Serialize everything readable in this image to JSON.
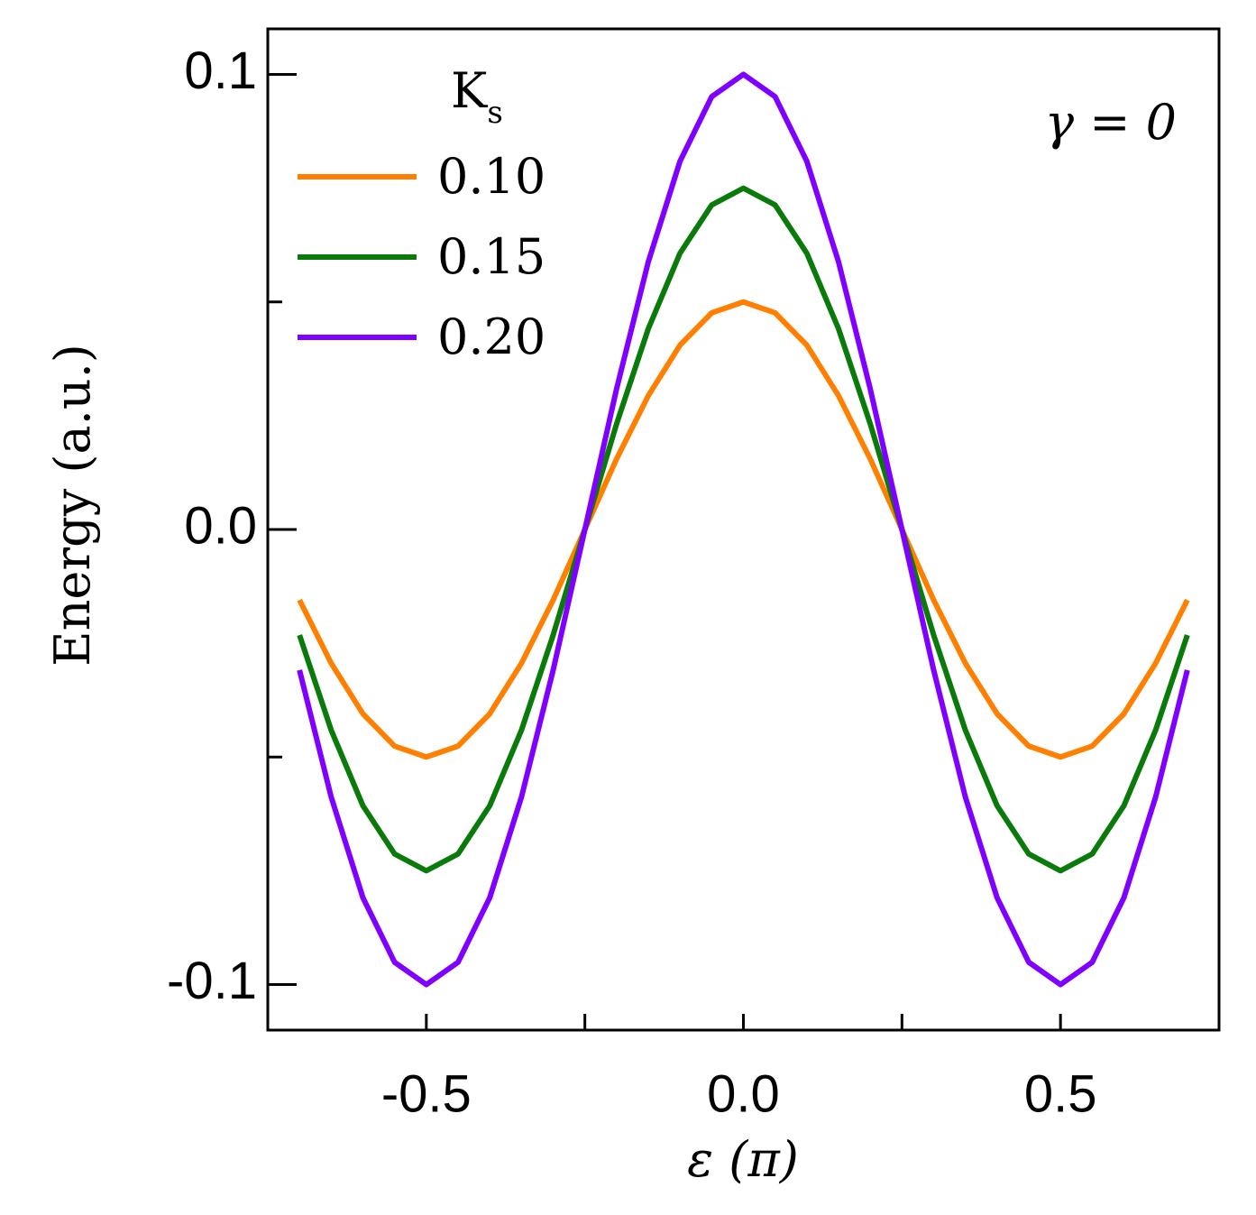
{
  "chart_data": {
    "type": "line",
    "xlabel": "ε (π)",
    "ylabel": "Energy (a.u.)",
    "annotation": "γ = 0",
    "legend_title": {
      "text": "K",
      "subscript": "s"
    },
    "x": [
      -0.7,
      -0.65,
      -0.6,
      -0.55,
      -0.5,
      -0.45,
      -0.4,
      -0.35,
      -0.3,
      -0.25,
      -0.2,
      -0.15,
      -0.1,
      -0.05,
      0,
      0.05,
      0.1,
      0.15,
      0.2,
      0.25,
      0.3,
      0.35,
      0.4,
      0.45,
      0.5,
      0.55,
      0.6,
      0.65,
      0.7
    ],
    "series": [
      {
        "name": "0.10",
        "color": "#ff8000",
        "values": [
          -0.0155,
          -0.0294,
          -0.0405,
          -0.0476,
          -0.05,
          -0.0476,
          -0.0405,
          -0.0294,
          -0.0155,
          0,
          0.0155,
          0.0294,
          0.0405,
          0.0476,
          0.05,
          0.0476,
          0.0405,
          0.0294,
          0.0155,
          0,
          -0.0155,
          -0.0294,
          -0.0405,
          -0.0476,
          -0.05,
          -0.0476,
          -0.0405,
          -0.0294,
          -0.0155
        ]
      },
      {
        "name": "0.15",
        "color": "#0a7a0a",
        "values": [
          -0.0232,
          -0.0441,
          -0.0607,
          -0.0713,
          -0.075,
          -0.0713,
          -0.0607,
          -0.0441,
          -0.0232,
          0,
          0.0232,
          0.0441,
          0.0607,
          0.0713,
          0.075,
          0.0713,
          0.0607,
          0.0441,
          0.0232,
          0,
          -0.0232,
          -0.0441,
          -0.0607,
          -0.0713,
          -0.075,
          -0.0713,
          -0.0607,
          -0.0441,
          -0.0232
        ]
      },
      {
        "name": "0.20",
        "color": "#8000ff",
        "values": [
          -0.0309,
          -0.0588,
          -0.0809,
          -0.0951,
          -0.1,
          -0.0951,
          -0.0809,
          -0.0588,
          -0.0309,
          0,
          0.0309,
          0.0588,
          0.0809,
          0.0951,
          0.1,
          0.0951,
          0.0809,
          0.0588,
          0.0309,
          0,
          -0.0309,
          -0.0588,
          -0.0809,
          -0.0951,
          -0.1,
          -0.0951,
          -0.0809,
          -0.0588,
          -0.0309
        ]
      }
    ],
    "xlim": [
      -0.75,
      0.75
    ],
    "ylim": [
      -0.11,
      0.11
    ],
    "xticks": [
      -0.5,
      {
        "value": 0,
        "label": "0.0"
      },
      0.5
    ],
    "xminor_ticks": [
      -0.25,
      0.25
    ],
    "yticks": [
      -0.1,
      {
        "value": 0,
        "label": "0.0"
      },
      0.1
    ],
    "yminor_ticks": [
      -0.05,
      0.05
    ],
    "grid": false
  }
}
